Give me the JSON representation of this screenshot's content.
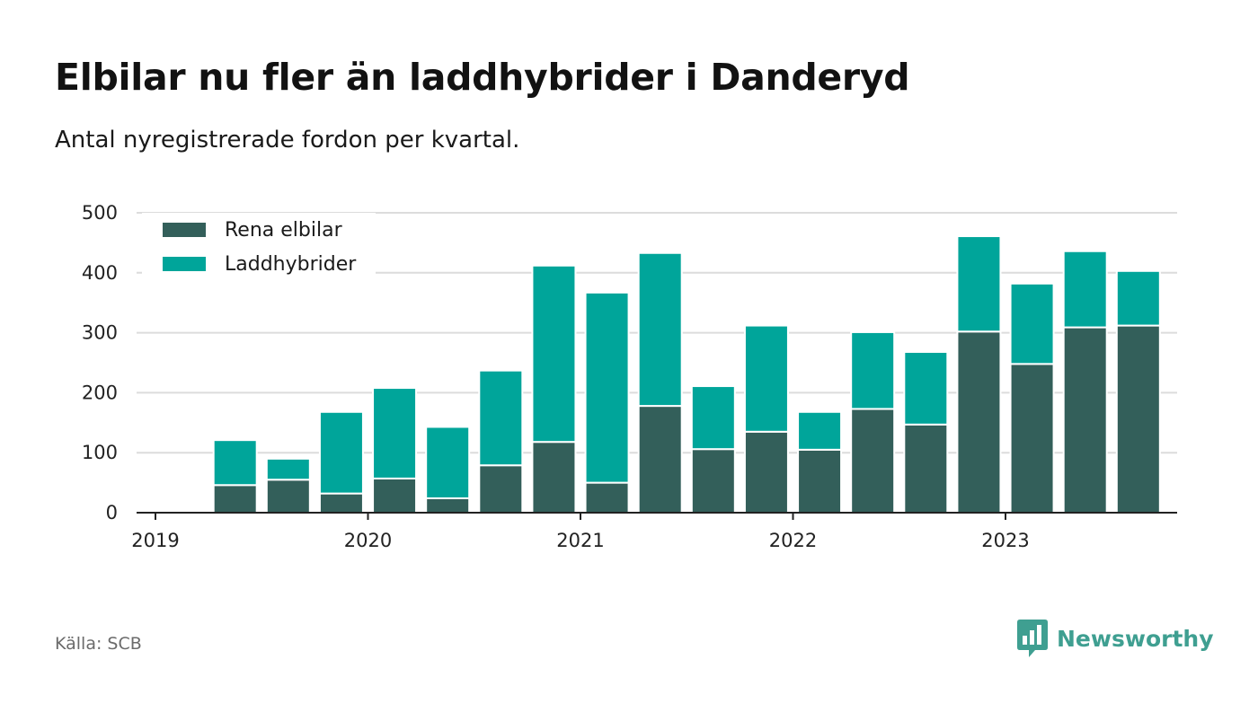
{
  "title": "Elbilar nu fler än laddhybrider i Danderyd",
  "subtitle": "Antal nyregistrerade fordon per kvartal.",
  "source": "Källa: SCB",
  "brand": {
    "name": "Newsworthy",
    "icon": "newsworthy-logo-icon"
  },
  "colors": {
    "electric": "#335f5a",
    "hybrid": "#00a59a",
    "grid": "#dcdcdc",
    "axis": "#222222",
    "brand": "#3f9f91"
  },
  "chart_data": {
    "type": "bar",
    "stacked": true,
    "categories": [
      "2019 Q2",
      "2019 Q3",
      "2019 Q4",
      "2020 Q1",
      "2020 Q2",
      "2020 Q3",
      "2020 Q4",
      "2021 Q1",
      "2021 Q2",
      "2021 Q3",
      "2021 Q4",
      "2022 Q1",
      "2022 Q2",
      "2022 Q3",
      "2022 Q4",
      "2023 Q1",
      "2023 Q2",
      "2023 Q3"
    ],
    "series": [
      {
        "name": "Rena elbilar",
        "values": [
          46,
          55,
          32,
          57,
          24,
          79,
          118,
          50,
          178,
          106,
          135,
          105,
          173,
          147,
          302,
          248,
          309,
          312
        ]
      },
      {
        "name": "Laddhybrider",
        "values": [
          75,
          35,
          136,
          151,
          119,
          158,
          294,
          317,
          255,
          105,
          177,
          63,
          128,
          121,
          159,
          134,
          127,
          91
        ]
      }
    ],
    "xticks": [
      "2019",
      "2020",
      "2021",
      "2022",
      "2023"
    ],
    "yticks": [
      0,
      100,
      200,
      300,
      400,
      500
    ],
    "ylim": [
      0,
      500
    ],
    "xlabel": "",
    "ylabel": "",
    "legend": {
      "position": "top-left",
      "entries": [
        "Rena elbilar",
        "Laddhybrider"
      ]
    },
    "grid": true
  }
}
